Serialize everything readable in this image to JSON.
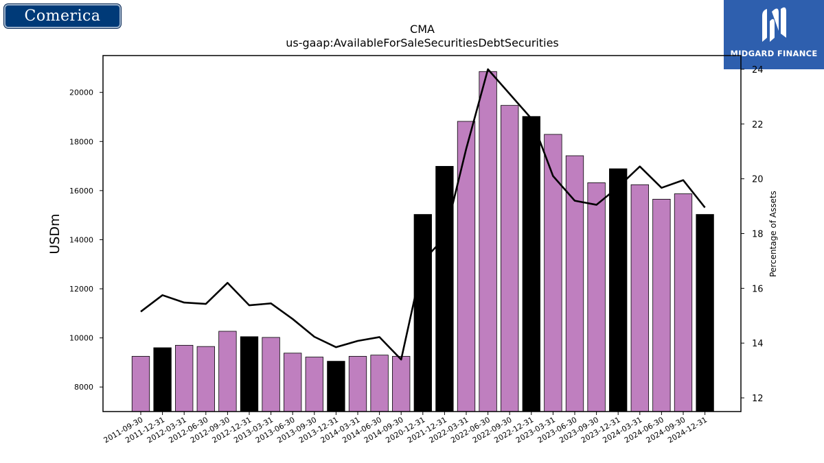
{
  "logos": {
    "left": "Comerica",
    "right": "MIDGARD FINANCE"
  },
  "chart_data": {
    "type": "bar",
    "title": "CMA",
    "subtitle": "us-gaap:AvailableForSaleSecuritiesDebtSecurities",
    "ylabel": "USDm",
    "y2label": "Percentage of Assets",
    "ylim": [
      7000,
      21500
    ],
    "y2lim": [
      11.5,
      24.5
    ],
    "yticks": [
      8000,
      10000,
      12000,
      14000,
      16000,
      18000,
      20000
    ],
    "y2ticks": [
      12,
      14,
      16,
      18,
      20,
      22,
      24
    ],
    "categories": [
      "2011-09-30",
      "2011-12-31",
      "2012-03-31",
      "2012-06-30",
      "2012-09-30",
      "2012-12-31",
      "2013-03-31",
      "2013-06-30",
      "2013-09-30",
      "2013-12-31",
      "2014-03-31",
      "2014-06-30",
      "2014-09-30",
      "2020-12-31",
      "2021-12-31",
      "2022-03-31",
      "2022-06-30",
      "2022-09-30",
      "2022-12-31",
      "2023-03-31",
      "2023-06-30",
      "2023-09-30",
      "2023-12-31",
      "2024-03-31",
      "2024-06-30",
      "2024-09-30",
      "2024-12-31"
    ],
    "series": [
      {
        "type": "bar",
        "values": [
          9250,
          9600,
          9700,
          9650,
          10270,
          10050,
          10020,
          9380,
          9220,
          9050,
          9250,
          9300,
          9250,
          15030,
          16990,
          18820,
          20850,
          19470,
          19020,
          18290,
          17420,
          16320,
          16890,
          16240,
          15650,
          15870,
          15030
        ],
        "colors": [
          "#bf7fbf",
          "#000000",
          "#bf7fbf",
          "#bf7fbf",
          "#bf7fbf",
          "#000000",
          "#bf7fbf",
          "#bf7fbf",
          "#bf7fbf",
          "#000000",
          "#bf7fbf",
          "#bf7fbf",
          "#bf7fbf",
          "#000000",
          "#000000",
          "#bf7fbf",
          "#bf7fbf",
          "#bf7fbf",
          "#000000",
          "#bf7fbf",
          "#bf7fbf",
          "#bf7fbf",
          "#000000",
          "#bf7fbf",
          "#bf7fbf",
          "#bf7fbf",
          "#000000"
        ]
      },
      {
        "type": "line",
        "axis": "right",
        "color": "#000000",
        "values": [
          15.15,
          15.75,
          15.48,
          15.43,
          16.2,
          15.38,
          15.45,
          14.88,
          14.23,
          13.85,
          14.08,
          14.22,
          13.4,
          17.0,
          17.85,
          21.1,
          24.0,
          23.1,
          22.2,
          20.1,
          19.2,
          19.05,
          19.7,
          20.45,
          19.67,
          19.95,
          18.95
        ]
      }
    ],
    "grid": false
  }
}
